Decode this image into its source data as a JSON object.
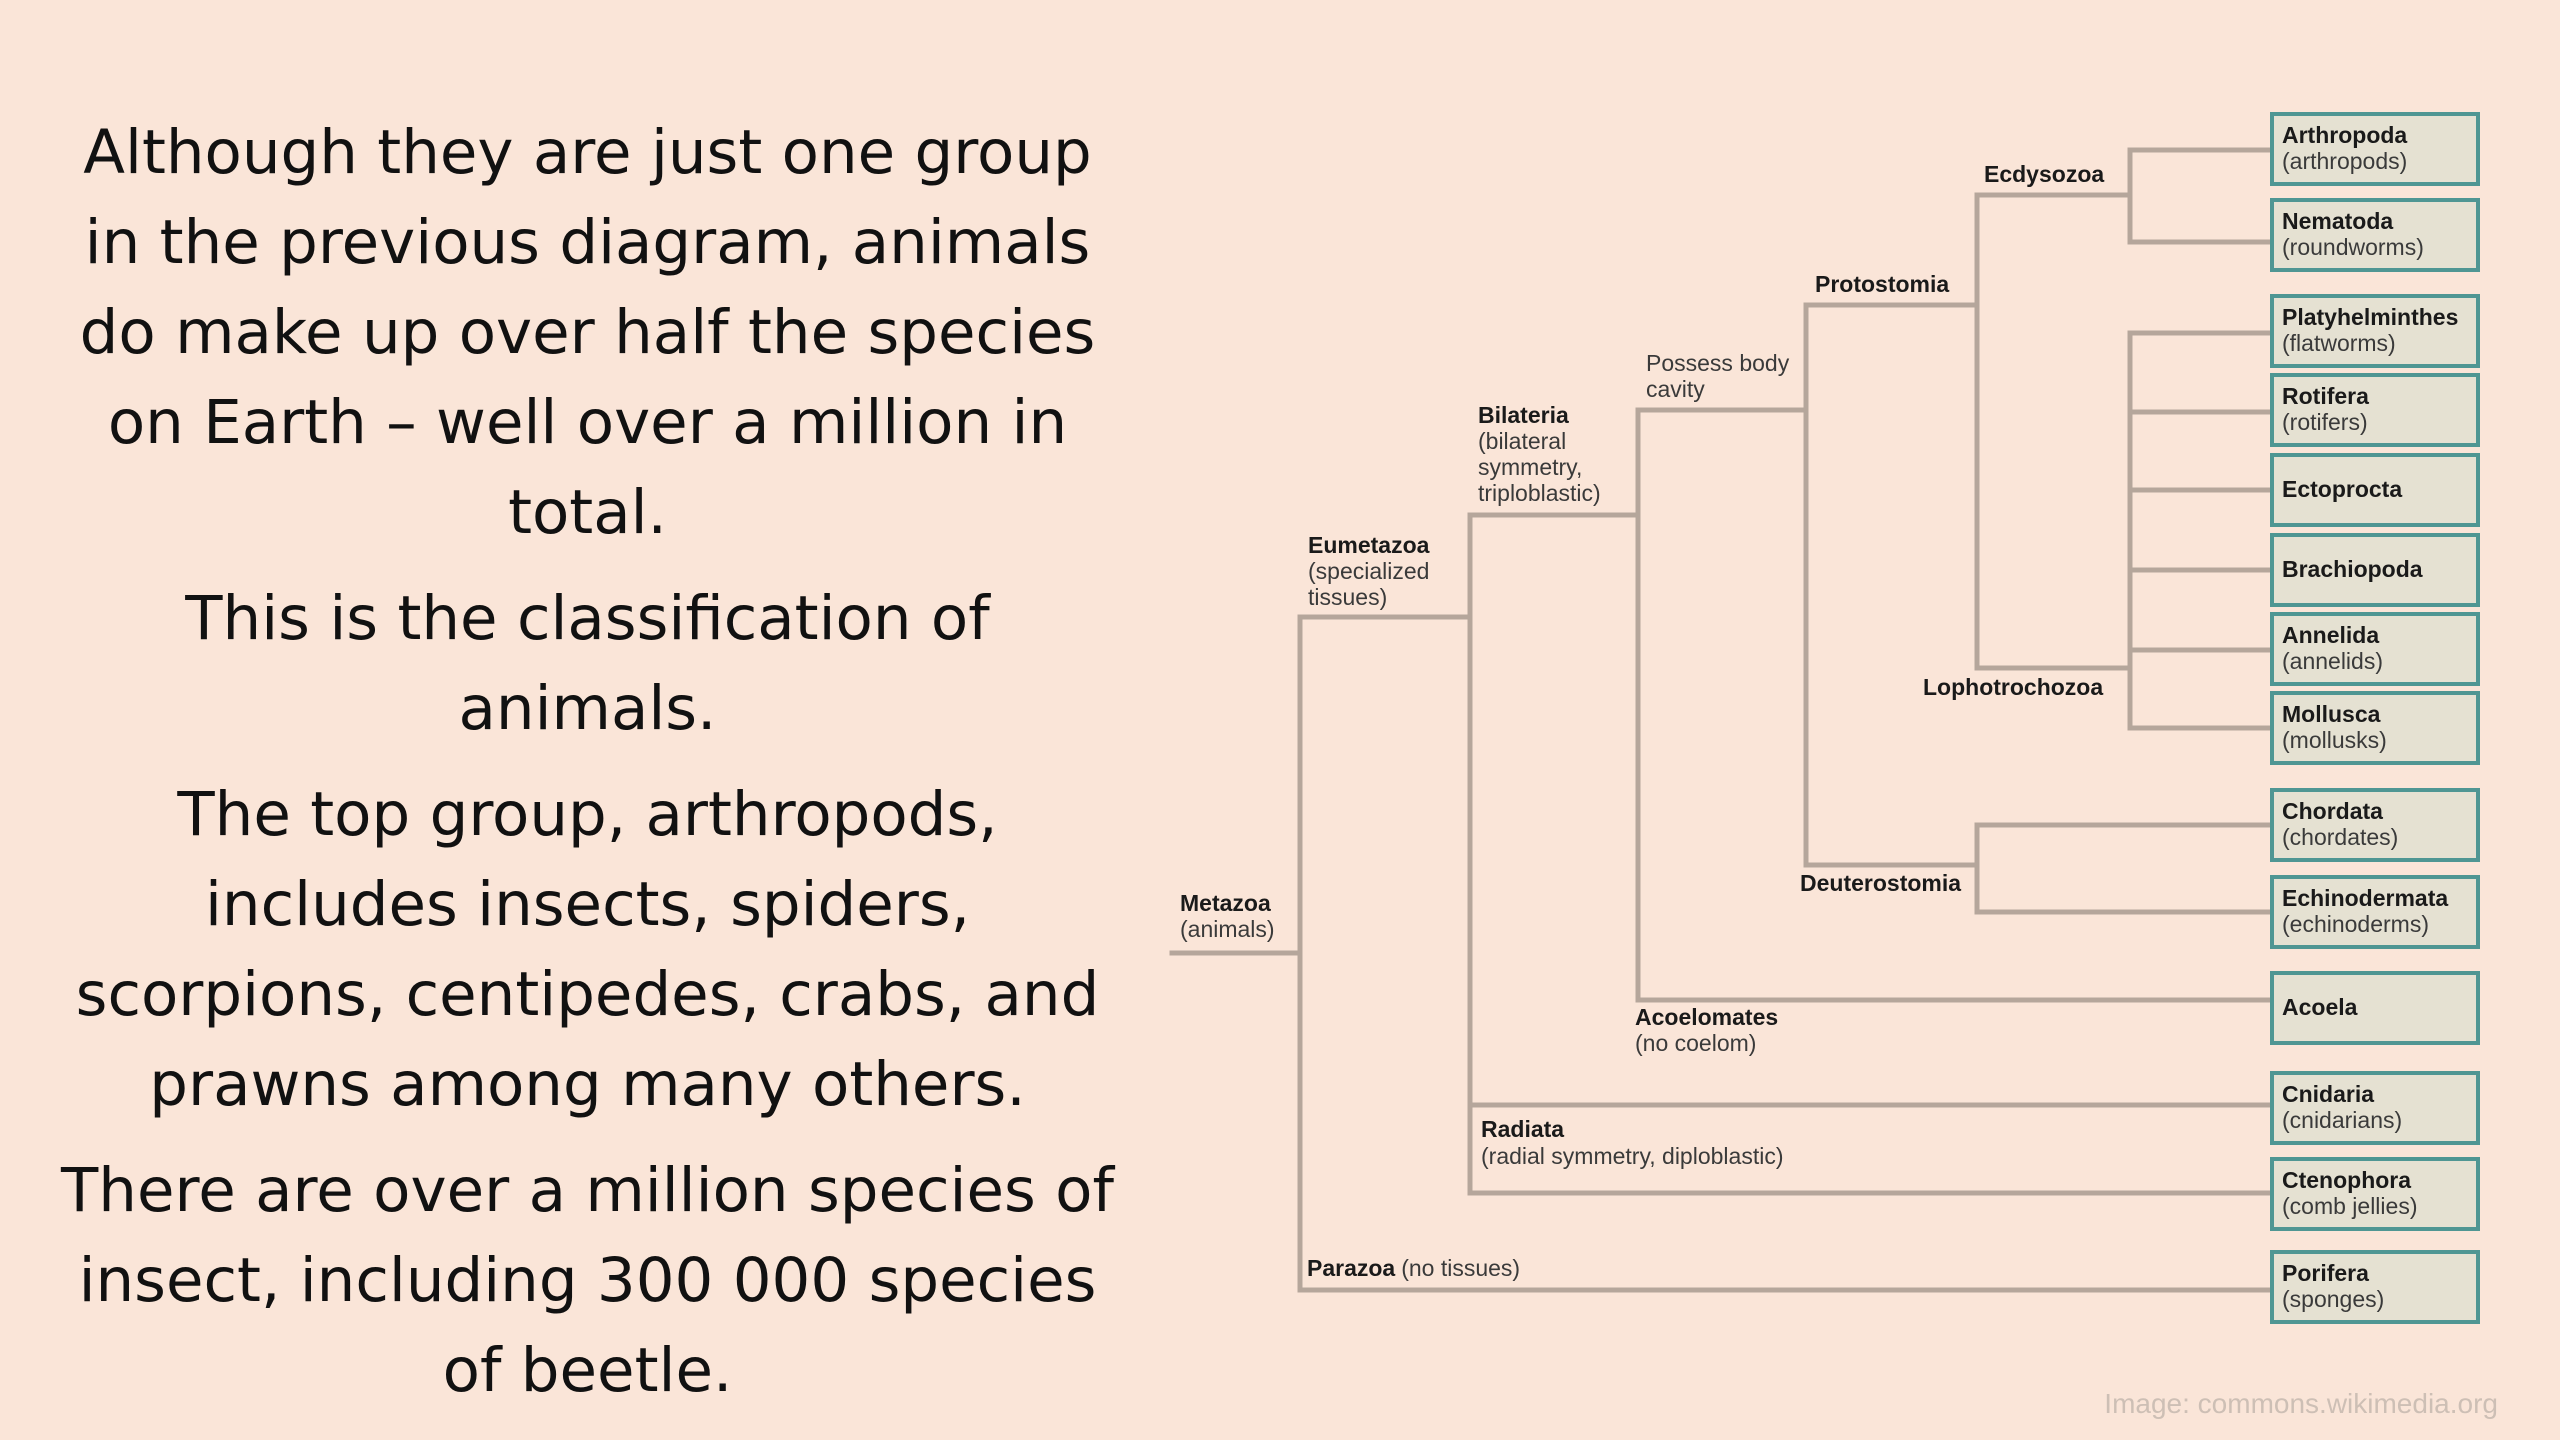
{
  "slide": {
    "paragraphs": [
      "Although they are just one group in the previous diagram, animals do make up over half the species on Earth – well over a million in total.",
      "This is the classification of animals.",
      "The top group, arthropods, includes insects, spiders, scorpions, centipedes, crabs, and prawns among many others.",
      "There are over a million species of insect, including 300 000 species of beetle."
    ],
    "credit": "Image: commons.wikimedia.org"
  },
  "tree": {
    "nodes": {
      "metazoa": {
        "name": "Metazoa",
        "desc": "(animals)"
      },
      "eumetazoa": {
        "name": "Eumetazoa",
        "desc": [
          "(specialized",
          "tissues)"
        ]
      },
      "bilateria": {
        "name": "Bilateria",
        "desc": [
          "(bilateral",
          "symmetry,",
          "triploblastic)"
        ]
      },
      "body_cavity": {
        "desc": [
          "Possess body",
          "cavity"
        ]
      },
      "protostomia": {
        "name": "Protostomia"
      },
      "ecdysozoa": {
        "name": "Ecdysozoa"
      },
      "lophotrochozoa": {
        "name": "Lophotrochozoa"
      },
      "deuterostomia": {
        "name": "Deuterostomia"
      },
      "acoelomates": {
        "name": "Acoelomates",
        "desc": "(no coelom)"
      },
      "radiata": {
        "name": "Radiata",
        "desc": "(radial symmetry, diploblastic)"
      },
      "parazoa": {
        "name": "Parazoa",
        "desc": "(no tissues)"
      }
    },
    "leaves": {
      "arthropoda": {
        "name": "Arthropoda",
        "desc": "(arthropods)"
      },
      "nematoda": {
        "name": "Nematoda",
        "desc": "(roundworms)"
      },
      "platyhelminthes": {
        "name": "Platyhelminthes",
        "desc": "(flatworms)"
      },
      "rotifera": {
        "name": "Rotifera",
        "desc": "(rotifers)"
      },
      "ectoprocta": {
        "name": "Ectoprocta"
      },
      "brachiopoda": {
        "name": "Brachiopoda"
      },
      "annelida": {
        "name": "Annelida",
        "desc": "(annelids)"
      },
      "mollusca": {
        "name": "Mollusca",
        "desc": "(mollusks)"
      },
      "chordata": {
        "name": "Chordata",
        "desc": "(chordates)"
      },
      "echinodermata": {
        "name": "Echinodermata",
        "desc": "(echinoderms)"
      },
      "acoela": {
        "name": "Acoela"
      },
      "cnidaria": {
        "name": "Cnidaria",
        "desc": "(cnidarians)"
      },
      "ctenophora": {
        "name": "Ctenophora",
        "desc": "(comb jellies)"
      },
      "porifera": {
        "name": "Porifera",
        "desc": "(sponges)"
      }
    }
  },
  "colors": {
    "background": "#fae5d8",
    "line": "#b5a69b",
    "box_fill": "#e5e1d2",
    "box_border": "#4f9693"
  }
}
